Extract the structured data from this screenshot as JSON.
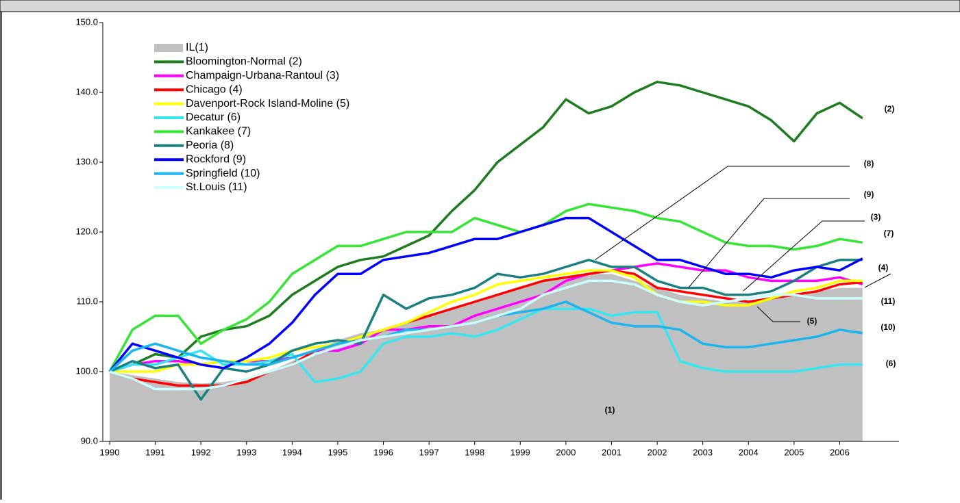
{
  "chart_data": {
    "type": "line",
    "x": [
      1990,
      1990.5,
      1991,
      1991.5,
      1992,
      1992.5,
      1993,
      1993.5,
      1994,
      1994.5,
      1995,
      1995.5,
      1996,
      1996.5,
      1997,
      1997.5,
      1998,
      1998.5,
      1999,
      1999.5,
      2000,
      2000.5,
      2001,
      2001.5,
      2002,
      2002.5,
      2003,
      2003.5,
      2004,
      2004.5,
      2005,
      2005.5,
      2006,
      2006.5
    ],
    "series": [
      {
        "name": "IL(1)",
        "color": "#c0c0c0",
        "area": true,
        "values": [
          100,
          99.5,
          99,
          98.5,
          98.3,
          98.5,
          99,
          100,
          101.5,
          103,
          104.5,
          105.5,
          106,
          107,
          108,
          109,
          110,
          111,
          112,
          113,
          113.5,
          114,
          114,
          113,
          112,
          111,
          110.5,
          110,
          110,
          110.5,
          111,
          111.5,
          112,
          112
        ]
      },
      {
        "name": "Bloomington-Normal (2)",
        "color": "#1d7c1d",
        "values": [
          100,
          101,
          102.5,
          102,
          105,
          106,
          106.5,
          108,
          111,
          113,
          115,
          116,
          116.5,
          118,
          119.5,
          123,
          126,
          130,
          132.5,
          135,
          139,
          137,
          138,
          140,
          141.5,
          141,
          140,
          139,
          138,
          136,
          133,
          137,
          138.5,
          136.3
        ]
      },
      {
        "name": "Champaign-Urbana-Rantoul (3)",
        "color": "#ff00ff",
        "values": [
          100,
          101,
          101.5,
          101.5,
          101,
          101.5,
          101.5,
          101.5,
          102,
          103,
          103,
          104,
          106,
          106,
          106.5,
          106.5,
          108,
          109,
          110,
          111,
          113,
          114,
          114.5,
          115,
          115.5,
          115,
          114.5,
          114.5,
          113.5,
          113,
          113,
          113,
          113.5,
          112.5
        ]
      },
      {
        "name": "Chicago (4)",
        "color": "#ff0000",
        "values": [
          100,
          99,
          98.5,
          98,
          98,
          98,
          98.5,
          100,
          101,
          103,
          104,
          105,
          106,
          107,
          108,
          109,
          110,
          111,
          112,
          113,
          113.5,
          114,
          114.5,
          114,
          112,
          111.5,
          111,
          110.5,
          110,
          110.5,
          111,
          111.5,
          112.5,
          112.8
        ]
      },
      {
        "name": "Davenport-Rock Island-Moline (5)",
        "color": "#ffff00",
        "values": [
          100,
          100,
          100,
          101,
          101,
          101.5,
          101.5,
          102,
          103,
          103.5,
          104,
          105,
          106,
          107,
          108.5,
          110,
          111,
          112.5,
          113,
          113.5,
          114,
          114.5,
          114.5,
          113.5,
          111,
          110,
          110,
          109.5,
          109.5,
          110.5,
          111.5,
          112,
          113,
          113
        ]
      },
      {
        "name": "Decatur (6)",
        "color": "#33e6f0",
        "values": [
          100,
          101,
          101,
          102,
          103,
          101,
          101,
          101.5,
          102.5,
          98.5,
          99,
          100,
          104,
          105,
          105,
          105.5,
          105,
          106,
          107.5,
          109,
          109,
          109,
          108,
          108.5,
          108.5,
          101.5,
          100.5,
          100,
          100,
          100,
          100,
          100.5,
          101,
          101
        ]
      },
      {
        "name": "Kankakee (7)",
        "color": "#33e633",
        "values": [
          100,
          106,
          108,
          108,
          104,
          106,
          107.5,
          110,
          114,
          116,
          118,
          118,
          119,
          120,
          120,
          120,
          122,
          121,
          120,
          121,
          123,
          124,
          123.5,
          123,
          122,
          121.5,
          120,
          118.5,
          118,
          118,
          117.5,
          118,
          119,
          118.5
        ]
      },
      {
        "name": "Peoria (8)",
        "color": "#1a8080",
        "values": [
          100,
          101.5,
          100.5,
          101,
          96,
          100.5,
          100,
          101,
          103,
          104,
          104.5,
          104,
          111,
          109,
          110.5,
          111,
          112,
          114,
          113.5,
          114,
          115,
          116,
          115,
          115,
          113,
          112,
          112,
          111,
          111,
          111.5,
          113,
          115,
          116,
          116
        ]
      },
      {
        "name": "Rockford (9)",
        "color": "#0000ff",
        "values": [
          100,
          104,
          103,
          102,
          101,
          100.5,
          102,
          104,
          107,
          111,
          114,
          114,
          116,
          116.5,
          117,
          118,
          119,
          119,
          120,
          121,
          122,
          122,
          120,
          118,
          116,
          116,
          115,
          114,
          114,
          113.5,
          114.5,
          115,
          114.5,
          116.2
        ]
      },
      {
        "name": "Springfield (10)",
        "color": "#1ab4ee",
        "values": [
          100,
          103,
          104,
          103,
          102,
          101.5,
          101,
          101,
          102,
          103,
          104,
          104.5,
          105,
          106,
          106,
          106.5,
          107,
          108,
          108.5,
          109,
          110,
          108.5,
          107,
          106.5,
          106.5,
          106,
          104,
          103.5,
          103.5,
          104,
          104.5,
          105,
          106,
          105.5
        ]
      },
      {
        "name": "St.Louis (11)",
        "color": "#ccffff",
        "values": [
          100,
          99,
          97.5,
          97.5,
          97.5,
          98,
          99,
          100,
          101,
          102.5,
          103.5,
          104.5,
          105,
          105.5,
          106,
          106.5,
          107,
          108,
          109,
          111,
          112,
          113,
          113,
          112.5,
          111,
          110,
          109.5,
          110,
          110.5,
          111,
          111,
          110.5,
          110.5,
          110.5
        ]
      }
    ],
    "annotations": [
      "(2)",
      "(8)",
      "(9)",
      "(3)",
      "(7)",
      "(4)",
      "(11)",
      "(5)",
      "(10)",
      "(6)",
      "(1)"
    ],
    "xlim": [
      1989.85,
      2007.3
    ],
    "ylim": [
      90,
      150
    ],
    "xticks": [
      1990,
      1991,
      1992,
      1993,
      1994,
      1995,
      1996,
      1997,
      1998,
      1999,
      2000,
      2001,
      2002,
      2003,
      2004,
      2005,
      2006
    ],
    "yticks": [
      {
        "value": 90,
        "label": "90.0"
      },
      {
        "value": 100,
        "label": "100.0"
      },
      {
        "value": 110,
        "label": "110.0"
      },
      {
        "value": 120,
        "label": "120.0"
      },
      {
        "value": 130,
        "label": "130.0"
      },
      {
        "value": 140,
        "label": "140.0"
      },
      {
        "value": 150,
        "label": "150.0"
      }
    ]
  }
}
